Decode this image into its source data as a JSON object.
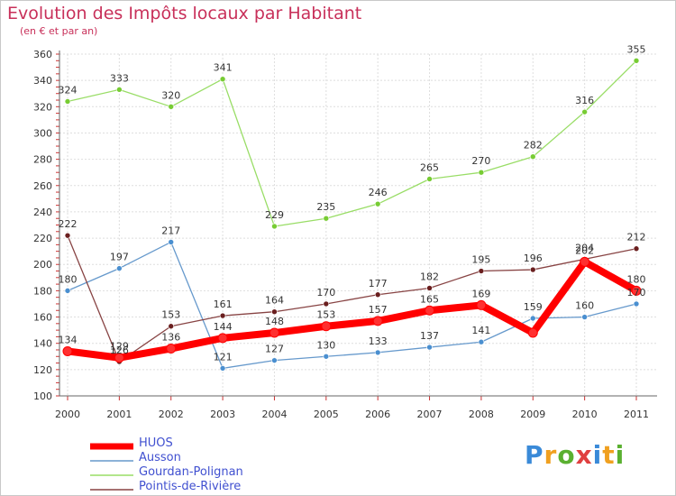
{
  "header": {
    "title": "Evolution des Impôts locaux par Habitant",
    "subtitle": "(en € et par an)"
  },
  "brand": {
    "letters": [
      "P",
      "r",
      "o",
      "x",
      "i",
      "t",
      "i"
    ],
    "colors": [
      "#3a8ad8",
      "#f0a020",
      "#5ab030",
      "#e04040",
      "#3a8ad8",
      "#f0a020",
      "#5ab030"
    ]
  },
  "chart_data": {
    "type": "line",
    "x": [
      "2000",
      "2001",
      "2002",
      "2003",
      "2004",
      "2005",
      "2006",
      "2007",
      "2008",
      "2009",
      "2010",
      "2011"
    ],
    "ylim": [
      100,
      360
    ],
    "yticks": [
      100,
      120,
      140,
      160,
      180,
      200,
      220,
      240,
      260,
      280,
      300,
      320,
      340,
      360
    ],
    "grid": true,
    "legend_position": "bottom-left",
    "series": [
      {
        "name": "HUOS",
        "color": "#ff0000",
        "values": [
          134,
          129,
          136,
          144,
          148,
          153,
          157,
          165,
          169,
          148,
          202,
          180
        ],
        "labels": [
          "134",
          "129",
          "136",
          "144",
          "148",
          "153",
          "157",
          "165",
          "169",
          "",
          "202",
          "180"
        ]
      },
      {
        "name": "Ausson",
        "color": "#6699cc",
        "values": [
          180,
          197,
          217,
          121,
          127,
          130,
          133,
          137,
          141,
          159,
          160,
          170
        ],
        "labels": [
          "180",
          "197",
          "217",
          "121",
          "127",
          "130",
          "133",
          "137",
          "141",
          "159",
          "160",
          "170"
        ]
      },
      {
        "name": "Gourdan-Polignan",
        "color": "#99dd66",
        "values": [
          324,
          333,
          320,
          341,
          229,
          235,
          246,
          265,
          270,
          282,
          316,
          355
        ],
        "labels": [
          "324",
          "333",
          "320",
          "341",
          "229",
          "235",
          "246",
          "265",
          "270",
          "282",
          "316",
          "355"
        ]
      },
      {
        "name": "Pointis-de-Rivière",
        "color": "#884444",
        "values": [
          222,
          126,
          153,
          161,
          164,
          170,
          177,
          182,
          195,
          196,
          204,
          212
        ],
        "labels": [
          "222",
          "126",
          "153",
          "161",
          "164",
          "170",
          "177",
          "182",
          "195",
          "196",
          "204",
          "212"
        ]
      }
    ]
  }
}
